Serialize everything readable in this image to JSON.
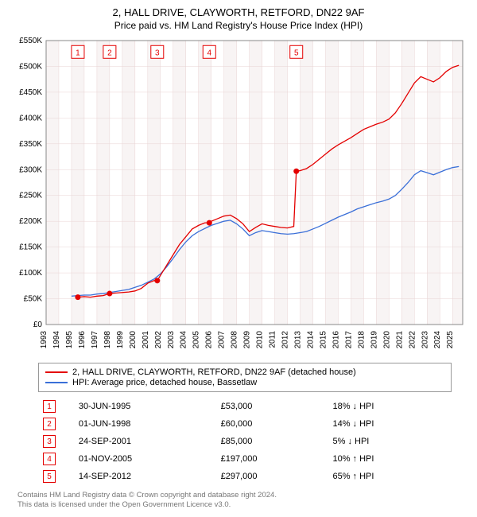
{
  "title_line1": "2, HALL DRIVE, CLAYWORTH, RETFORD, DN22 9AF",
  "title_line2": "Price paid vs. HM Land Registry's House Price Index (HPI)",
  "chart": {
    "type": "line",
    "background_color": "#ffffff",
    "plot_background": "#ffffff",
    "grid_color_minor": "#f3e6e6",
    "grid_color_major": "#e9d4d4",
    "axis_color": "#888888",
    "tick_font_size": 10,
    "tick_color": "#000000",
    "y": {
      "min": 0,
      "max": 550000,
      "step": 50000,
      "tick_labels": [
        "£0",
        "£50K",
        "£100K",
        "£150K",
        "£200K",
        "£250K",
        "£300K",
        "£350K",
        "£400K",
        "£450K",
        "£500K",
        "£550K"
      ]
    },
    "x": {
      "min": 1993,
      "max": 2025.8,
      "step": 1,
      "tick_labels": [
        "1993",
        "1994",
        "1995",
        "1996",
        "1997",
        "1998",
        "1999",
        "2000",
        "2001",
        "2002",
        "2003",
        "2004",
        "2005",
        "2006",
        "2007",
        "2008",
        "2009",
        "2010",
        "2011",
        "2012",
        "2013",
        "2014",
        "2015",
        "2016",
        "2017",
        "2018",
        "2019",
        "2020",
        "2021",
        "2022",
        "2023",
        "2024",
        "2025"
      ]
    },
    "series": [
      {
        "name": "property",
        "label": "2, HALL DRIVE, CLAYWORTH, RETFORD, DN22 9AF (detached house)",
        "color": "#e40000",
        "width": 1.3,
        "points": [
          [
            1995.5,
            53000
          ],
          [
            1996,
            54000
          ],
          [
            1996.5,
            53000
          ],
          [
            1997,
            55000
          ],
          [
            1997.5,
            56000
          ],
          [
            1998,
            60000
          ],
          [
            1998.5,
            61000
          ],
          [
            1999,
            62000
          ],
          [
            1999.5,
            63000
          ],
          [
            2000,
            65000
          ],
          [
            2000.5,
            70000
          ],
          [
            2001,
            80000
          ],
          [
            2001.5,
            85000
          ],
          [
            2001.75,
            85000
          ],
          [
            2002,
            95000
          ],
          [
            2002.5,
            115000
          ],
          [
            2003,
            135000
          ],
          [
            2003.5,
            155000
          ],
          [
            2004,
            170000
          ],
          [
            2004.5,
            185000
          ],
          [
            2005,
            192000
          ],
          [
            2005.5,
            197000
          ],
          [
            2005.85,
            197000
          ],
          [
            2006,
            200000
          ],
          [
            2006.5,
            205000
          ],
          [
            2007,
            210000
          ],
          [
            2007.5,
            212000
          ],
          [
            2008,
            205000
          ],
          [
            2008.5,
            195000
          ],
          [
            2009,
            180000
          ],
          [
            2009.5,
            188000
          ],
          [
            2010,
            195000
          ],
          [
            2010.5,
            192000
          ],
          [
            2011,
            190000
          ],
          [
            2011.5,
            188000
          ],
          [
            2012,
            187000
          ],
          [
            2012.5,
            190000
          ],
          [
            2012.7,
            297000
          ],
          [
            2013,
            298000
          ],
          [
            2013.5,
            302000
          ],
          [
            2014,
            310000
          ],
          [
            2014.5,
            320000
          ],
          [
            2015,
            330000
          ],
          [
            2015.5,
            340000
          ],
          [
            2016,
            348000
          ],
          [
            2016.5,
            355000
          ],
          [
            2017,
            362000
          ],
          [
            2017.5,
            370000
          ],
          [
            2018,
            378000
          ],
          [
            2018.5,
            383000
          ],
          [
            2019,
            388000
          ],
          [
            2019.5,
            392000
          ],
          [
            2020,
            398000
          ],
          [
            2020.5,
            410000
          ],
          [
            2021,
            428000
          ],
          [
            2021.5,
            448000
          ],
          [
            2022,
            468000
          ],
          [
            2022.5,
            480000
          ],
          [
            2023,
            475000
          ],
          [
            2023.5,
            470000
          ],
          [
            2024,
            478000
          ],
          [
            2024.5,
            490000
          ],
          [
            2025,
            498000
          ],
          [
            2025.5,
            502000
          ]
        ]
      },
      {
        "name": "hpi",
        "label": "HPI: Average price, detached house, Bassetlaw",
        "color": "#3a6fd8",
        "width": 1.2,
        "points": [
          [
            1995,
            55000
          ],
          [
            1995.5,
            56000
          ],
          [
            1996,
            57000
          ],
          [
            1996.5,
            57000
          ],
          [
            1997,
            59000
          ],
          [
            1997.5,
            60000
          ],
          [
            1998,
            62000
          ],
          [
            1998.5,
            64000
          ],
          [
            1999,
            66000
          ],
          [
            1999.5,
            68000
          ],
          [
            2000,
            72000
          ],
          [
            2000.5,
            76000
          ],
          [
            2001,
            82000
          ],
          [
            2001.5,
            88000
          ],
          [
            2002,
            98000
          ],
          [
            2002.5,
            112000
          ],
          [
            2003,
            128000
          ],
          [
            2003.5,
            145000
          ],
          [
            2004,
            160000
          ],
          [
            2004.5,
            172000
          ],
          [
            2005,
            180000
          ],
          [
            2005.5,
            186000
          ],
          [
            2006,
            192000
          ],
          [
            2006.5,
            196000
          ],
          [
            2007,
            200000
          ],
          [
            2007.5,
            202000
          ],
          [
            2008,
            195000
          ],
          [
            2008.5,
            185000
          ],
          [
            2009,
            172000
          ],
          [
            2009.5,
            178000
          ],
          [
            2010,
            182000
          ],
          [
            2010.5,
            180000
          ],
          [
            2011,
            178000
          ],
          [
            2011.5,
            176000
          ],
          [
            2012,
            175000
          ],
          [
            2012.5,
            176000
          ],
          [
            2013,
            178000
          ],
          [
            2013.5,
            180000
          ],
          [
            2014,
            185000
          ],
          [
            2014.5,
            190000
          ],
          [
            2015,
            196000
          ],
          [
            2015.5,
            202000
          ],
          [
            2016,
            208000
          ],
          [
            2016.5,
            213000
          ],
          [
            2017,
            218000
          ],
          [
            2017.5,
            224000
          ],
          [
            2018,
            228000
          ],
          [
            2018.5,
            232000
          ],
          [
            2019,
            236000
          ],
          [
            2019.5,
            239000
          ],
          [
            2020,
            243000
          ],
          [
            2020.5,
            250000
          ],
          [
            2021,
            262000
          ],
          [
            2021.5,
            275000
          ],
          [
            2022,
            290000
          ],
          [
            2022.5,
            298000
          ],
          [
            2023,
            294000
          ],
          [
            2023.5,
            290000
          ],
          [
            2024,
            295000
          ],
          [
            2024.5,
            300000
          ],
          [
            2025,
            304000
          ],
          [
            2025.5,
            306000
          ]
        ]
      }
    ],
    "sale_markers": {
      "color": "#e40000",
      "dot_radius": 3.5,
      "box_y_value": 528000,
      "entries": [
        {
          "n": "1",
          "x": 1995.5,
          "y": 53000
        },
        {
          "n": "2",
          "x": 1998.0,
          "y": 60000
        },
        {
          "n": "3",
          "x": 2001.75,
          "y": 85000
        },
        {
          "n": "4",
          "x": 2005.85,
          "y": 197000
        },
        {
          "n": "5",
          "x": 2012.7,
          "y": 297000
        }
      ]
    },
    "vbands": {
      "color": "#f4eded"
    }
  },
  "legend": [
    {
      "color": "#e40000",
      "label": "2, HALL DRIVE, CLAYWORTH, RETFORD, DN22 9AF (detached house)"
    },
    {
      "color": "#3a6fd8",
      "label": "HPI: Average price, detached house, Bassetlaw"
    }
  ],
  "sales_table": {
    "marker_color": "#e40000",
    "rows": [
      {
        "n": "1",
        "date": "30-JUN-1995",
        "price": "£53,000",
        "pct": "18% ↓ HPI"
      },
      {
        "n": "2",
        "date": "01-JUN-1998",
        "price": "£60,000",
        "pct": "14% ↓ HPI"
      },
      {
        "n": "3",
        "date": "24-SEP-2001",
        "price": "£85,000",
        "pct": "5% ↓ HPI"
      },
      {
        "n": "4",
        "date": "01-NOV-2005",
        "price": "£197,000",
        "pct": "10% ↑ HPI"
      },
      {
        "n": "5",
        "date": "14-SEP-2012",
        "price": "£297,000",
        "pct": "65% ↑ HPI"
      }
    ]
  },
  "footer_line1": "Contains HM Land Registry data © Crown copyright and database right 2024.",
  "footer_line2": "This data is licensed under the Open Government Licence v3.0."
}
